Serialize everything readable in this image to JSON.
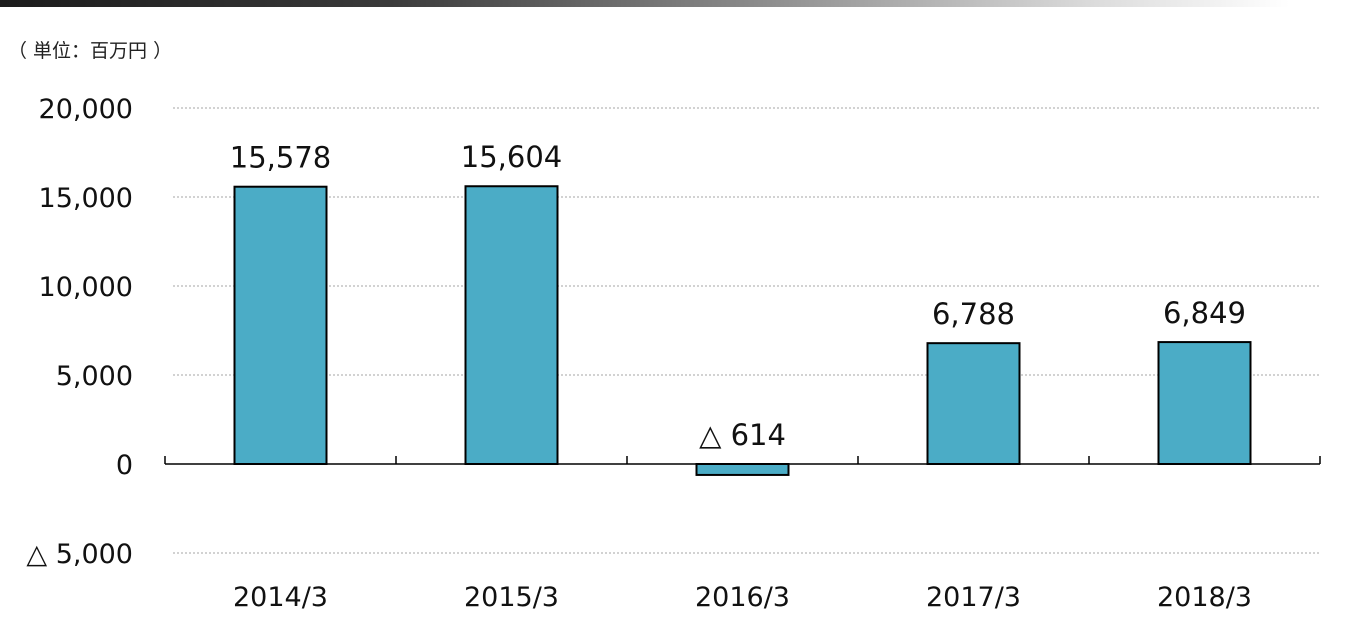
{
  "header": {
    "unit_label": "（ 単位：百万円 ）"
  },
  "chart_data": {
    "type": "bar",
    "unit": "百万円",
    "categories": [
      "2014/3",
      "2015/3",
      "2016/3",
      "2017/3",
      "2018/3"
    ],
    "values": [
      15578,
      15604,
      -614,
      6788,
      6849
    ],
    "data_labels": [
      "15,578",
      "15,604",
      "△ 614",
      "6,788",
      "6,849"
    ],
    "y_ticks": [
      {
        "value": 20000,
        "label": "20,000"
      },
      {
        "value": 15000,
        "label": "15,000"
      },
      {
        "value": 10000,
        "label": "10,000"
      },
      {
        "value": 5000,
        "label": "5,000"
      },
      {
        "value": 0,
        "label": "0"
      },
      {
        "value": -5000,
        "label": "△ 5,000"
      }
    ],
    "ylim": [
      -5000,
      20000
    ],
    "grid": true,
    "legend": "none",
    "colors": {
      "bar_fill": "#4bacc6",
      "bar_stroke": "#000000",
      "gridline": "#a6a6a6",
      "axis": "#000000"
    }
  }
}
